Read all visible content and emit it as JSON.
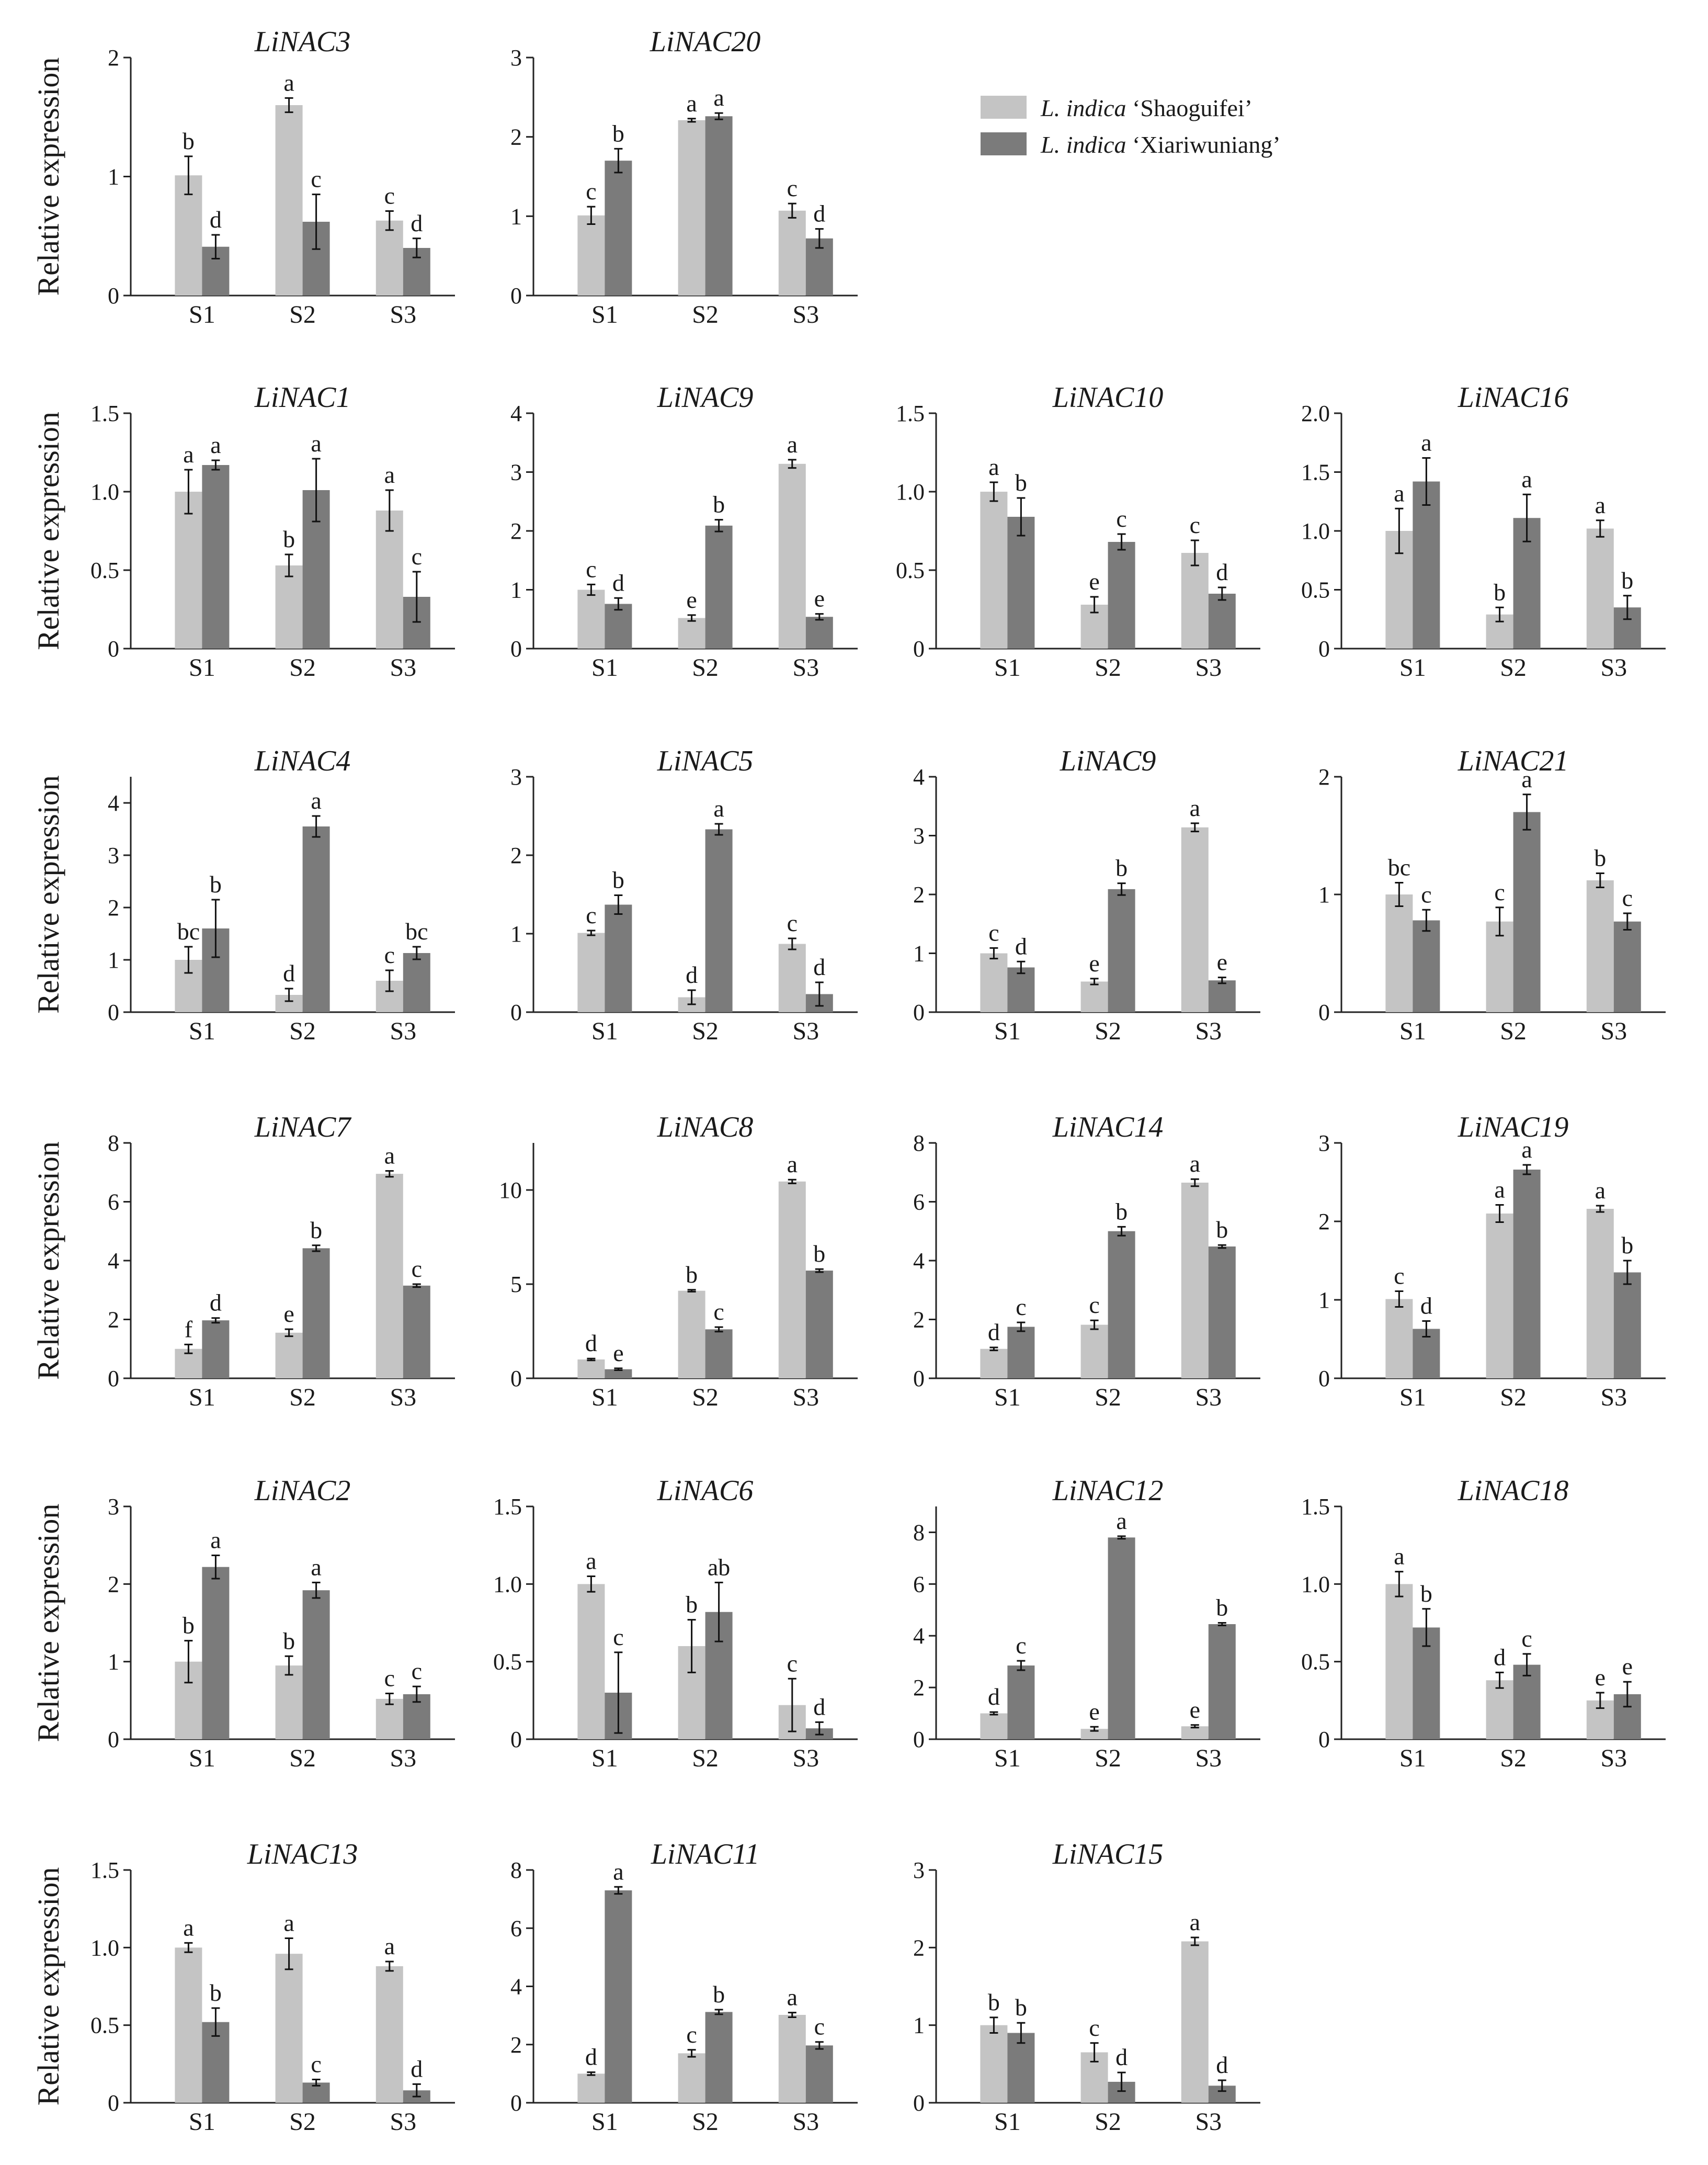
{
  "figure": {
    "ylabel": "Relative expression",
    "legend": [
      {
        "prefix": "L. indica",
        "suffix": " ‘Shaoguifei’",
        "color": "#c4c4c4"
      },
      {
        "prefix": "L. indica",
        "suffix": " ‘Xiariwuniang’",
        "color": "#7b7b7b"
      }
    ]
  },
  "chart_data": [
    {
      "type": "bar",
      "title": "LiNAC3",
      "categories": [
        "S1",
        "S2",
        "S3"
      ],
      "ylim": [
        0,
        2
      ],
      "yticks": [
        0,
        1,
        2
      ],
      "series": [
        {
          "name": "L. indica ‘Shaoguifei’",
          "values": [
            1.01,
            1.6,
            0.63
          ],
          "errors": [
            0.16,
            0.06,
            0.08
          ],
          "letters": [
            "b",
            "a",
            "c"
          ]
        },
        {
          "name": "L. indica ‘Xiariwuniang’",
          "values": [
            0.41,
            0.62,
            0.4
          ],
          "errors": [
            0.1,
            0.23,
            0.08
          ],
          "letters": [
            "d",
            "c",
            "d"
          ]
        }
      ]
    },
    {
      "type": "bar",
      "title": "LiNAC20",
      "categories": [
        "S1",
        "S2",
        "S3"
      ],
      "ylim": [
        0,
        3
      ],
      "yticks": [
        0,
        1,
        2,
        3
      ],
      "series": [
        {
          "name": "L. indica ‘Shaoguifei’",
          "values": [
            1.01,
            2.21,
            1.07
          ],
          "errors": [
            0.11,
            0.02,
            0.09
          ],
          "letters": [
            "c",
            "a",
            "c"
          ]
        },
        {
          "name": "L. indica ‘Xiariwuniang’",
          "values": [
            1.7,
            2.26,
            0.72
          ],
          "errors": [
            0.15,
            0.04,
            0.12
          ],
          "letters": [
            "b",
            "a",
            "d"
          ]
        }
      ]
    },
    {
      "type": "bar",
      "title": "LiNAC1",
      "categories": [
        "S1",
        "S2",
        "S3"
      ],
      "ylim": [
        0,
        1.5
      ],
      "yticks": [
        0,
        0.5,
        1.0,
        1.5
      ],
      "series": [
        {
          "name": "L. indica ‘Shaoguifei’",
          "values": [
            1.0,
            0.53,
            0.88
          ],
          "errors": [
            0.14,
            0.07,
            0.13
          ],
          "letters": [
            "a",
            "b",
            "a"
          ]
        },
        {
          "name": "L. indica ‘Xiariwuniang’",
          "values": [
            1.17,
            1.01,
            0.33
          ],
          "errors": [
            0.03,
            0.2,
            0.16
          ],
          "letters": [
            "a",
            "a",
            "c"
          ]
        }
      ]
    },
    {
      "type": "bar",
      "title": "LiNAC9",
      "categories": [
        "S1",
        "S2",
        "S3"
      ],
      "ylim": [
        0,
        4
      ],
      "yticks": [
        0,
        1,
        2,
        3,
        4
      ],
      "series": [
        {
          "name": "L. indica ‘Shaoguifei’",
          "values": [
            1.0,
            0.52,
            3.14
          ],
          "errors": [
            0.09,
            0.05,
            0.07
          ],
          "letters": [
            "c",
            "e",
            "a"
          ]
        },
        {
          "name": "L. indica ‘Xiariwuniang’",
          "values": [
            0.76,
            2.09,
            0.54
          ],
          "errors": [
            0.1,
            0.1,
            0.05
          ],
          "letters": [
            "d",
            "b",
            "e"
          ]
        }
      ]
    },
    {
      "type": "bar",
      "title": "LiNAC10",
      "categories": [
        "S1",
        "S2",
        "S3"
      ],
      "ylim": [
        0,
        1.5
      ],
      "yticks": [
        0,
        0.5,
        1.0,
        1.5
      ],
      "series": [
        {
          "name": "L. indica ‘Shaoguifei’",
          "values": [
            1.0,
            0.28,
            0.61
          ],
          "errors": [
            0.06,
            0.05,
            0.08
          ],
          "letters": [
            "a",
            "e",
            "c"
          ]
        },
        {
          "name": "L. indica ‘Xiariwuniang’",
          "values": [
            0.84,
            0.68,
            0.35
          ],
          "errors": [
            0.12,
            0.05,
            0.04
          ],
          "letters": [
            "b",
            "c",
            "d"
          ]
        }
      ]
    },
    {
      "type": "bar",
      "title": "LiNAC16",
      "categories": [
        "S1",
        "S2",
        "S3"
      ],
      "ylim": [
        0,
        2.0
      ],
      "yticks": [
        0,
        0.5,
        1.0,
        1.5,
        2.0
      ],
      "series": [
        {
          "name": "L. indica ‘Shaoguifei’",
          "values": [
            1.0,
            0.29,
            1.02
          ],
          "errors": [
            0.19,
            0.06,
            0.07
          ],
          "letters": [
            "a",
            "b",
            "a"
          ]
        },
        {
          "name": "L. indica ‘Xiariwuniang’",
          "values": [
            1.42,
            1.11,
            0.35
          ],
          "errors": [
            0.2,
            0.2,
            0.1
          ],
          "letters": [
            "a",
            "a",
            "b"
          ]
        }
      ]
    },
    {
      "type": "bar",
      "title": "LiNAC4",
      "categories": [
        "S1",
        "S2",
        "S3"
      ],
      "ylim": [
        0,
        4.5
      ],
      "yticks": [
        0,
        1,
        2,
        3,
        4
      ],
      "series": [
        {
          "name": "L. indica ‘Shaoguifei’",
          "values": [
            1.0,
            0.33,
            0.6
          ],
          "errors": [
            0.25,
            0.12,
            0.2
          ],
          "letters": [
            "bc",
            "d",
            "c"
          ]
        },
        {
          "name": "L. indica ‘Xiariwuniang’",
          "values": [
            1.6,
            3.55,
            1.13
          ],
          "errors": [
            0.55,
            0.2,
            0.12
          ],
          "letters": [
            "b",
            "a",
            "bc"
          ]
        }
      ]
    },
    {
      "type": "bar",
      "title": "LiNAC5",
      "categories": [
        "S1",
        "S2",
        "S3"
      ],
      "ylim": [
        0,
        3
      ],
      "yticks": [
        0,
        1,
        2,
        3
      ],
      "series": [
        {
          "name": "L. indica ‘Shaoguifei’",
          "values": [
            1.01,
            0.19,
            0.87
          ],
          "errors": [
            0.03,
            0.09,
            0.07
          ],
          "letters": [
            "c",
            "d",
            "c"
          ]
        },
        {
          "name": "L. indica ‘Xiariwuniang’",
          "values": [
            1.37,
            2.33,
            0.23
          ],
          "errors": [
            0.12,
            0.07,
            0.15
          ],
          "letters": [
            "b",
            "a",
            "d"
          ]
        }
      ]
    },
    {
      "type": "bar",
      "title": "LiNAC9",
      "categories": [
        "S1",
        "S2",
        "S3"
      ],
      "ylim": [
        0,
        4
      ],
      "yticks": [
        0,
        1,
        2,
        3,
        4
      ],
      "series": [
        {
          "name": "L. indica ‘Shaoguifei’",
          "values": [
            1.0,
            0.52,
            3.14
          ],
          "errors": [
            0.09,
            0.05,
            0.07
          ],
          "letters": [
            "c",
            "e",
            "a"
          ]
        },
        {
          "name": "L. indica ‘Xiariwuniang’",
          "values": [
            0.76,
            2.09,
            0.54
          ],
          "errors": [
            0.1,
            0.1,
            0.05
          ],
          "letters": [
            "d",
            "b",
            "e"
          ]
        }
      ]
    },
    {
      "type": "bar",
      "title": "LiNAC21",
      "categories": [
        "S1",
        "S2",
        "S3"
      ],
      "ylim": [
        0,
        2
      ],
      "yticks": [
        0,
        1,
        2
      ],
      "series": [
        {
          "name": "L. indica ‘Shaoguifei’",
          "values": [
            1.0,
            0.77,
            1.12
          ],
          "errors": [
            0.1,
            0.12,
            0.06
          ],
          "letters": [
            "bc",
            "c",
            "b"
          ]
        },
        {
          "name": "L. indica ‘Xiariwuniang’",
          "values": [
            0.78,
            1.7,
            0.77
          ],
          "errors": [
            0.09,
            0.15,
            0.07
          ],
          "letters": [
            "c",
            "a",
            "c"
          ]
        }
      ]
    },
    {
      "type": "bar",
      "title": "LiNAC7",
      "categories": [
        "S1",
        "S2",
        "S3"
      ],
      "ylim": [
        0,
        8
      ],
      "yticks": [
        0,
        2,
        4,
        6,
        8
      ],
      "series": [
        {
          "name": "L. indica ‘Shaoguifei’",
          "values": [
            1.0,
            1.55,
            6.95
          ],
          "errors": [
            0.15,
            0.12,
            0.1
          ],
          "letters": [
            "f",
            "e",
            "a"
          ]
        },
        {
          "name": "L. indica ‘Xiariwuniang’",
          "values": [
            1.97,
            4.42,
            3.15
          ],
          "errors": [
            0.08,
            0.1,
            0.05
          ],
          "letters": [
            "d",
            "b",
            "c"
          ]
        }
      ]
    },
    {
      "type": "bar",
      "title": "LiNAC8",
      "categories": [
        "S1",
        "S2",
        "S3"
      ],
      "ylim": [
        0,
        12.5
      ],
      "yticks": [
        0,
        5,
        10
      ],
      "series": [
        {
          "name": "L. indica ‘Shaoguifei’",
          "values": [
            1.0,
            4.65,
            10.45
          ],
          "errors": [
            0.05,
            0.05,
            0.1
          ],
          "letters": [
            "d",
            "b",
            "a"
          ]
        },
        {
          "name": "L. indica ‘Xiariwuniang’",
          "values": [
            0.48,
            2.6,
            5.72
          ],
          "errors": [
            0.05,
            0.12,
            0.08
          ],
          "letters": [
            "e",
            "c",
            "b"
          ]
        }
      ]
    },
    {
      "type": "bar",
      "title": "LiNAC14",
      "categories": [
        "S1",
        "S2",
        "S3"
      ],
      "ylim": [
        0,
        8
      ],
      "yticks": [
        0,
        2,
        4,
        6,
        8
      ],
      "series": [
        {
          "name": "L. indica ‘Shaoguifei’",
          "values": [
            1.0,
            1.82,
            6.65
          ],
          "errors": [
            0.05,
            0.15,
            0.12
          ],
          "letters": [
            "d",
            "c",
            "a"
          ]
        },
        {
          "name": "L. indica ‘Xiariwuniang’",
          "values": [
            1.75,
            5.0,
            4.48
          ],
          "errors": [
            0.15,
            0.15,
            0.05
          ],
          "letters": [
            "c",
            "b",
            "b"
          ]
        }
      ]
    },
    {
      "type": "bar",
      "title": "LiNAC19",
      "categories": [
        "S1",
        "S2",
        "S3"
      ],
      "ylim": [
        0,
        3
      ],
      "yticks": [
        0,
        1,
        2,
        3
      ],
      "series": [
        {
          "name": "L. indica ‘Shaoguifei’",
          "values": [
            1.01,
            2.1,
            2.16
          ],
          "errors": [
            0.1,
            0.11,
            0.04
          ],
          "letters": [
            "c",
            "a",
            "a"
          ]
        },
        {
          "name": "L. indica ‘Xiariwuniang’",
          "values": [
            0.63,
            2.66,
            1.35
          ],
          "errors": [
            0.1,
            0.06,
            0.15
          ],
          "letters": [
            "d",
            "a",
            "b"
          ]
        }
      ]
    },
    {
      "type": "bar",
      "title": "LiNAC2",
      "categories": [
        "S1",
        "S2",
        "S3"
      ],
      "ylim": [
        0,
        3
      ],
      "yticks": [
        0,
        1,
        2,
        3
      ],
      "series": [
        {
          "name": "L. indica ‘Shaoguifei’",
          "values": [
            1.0,
            0.95,
            0.52
          ],
          "errors": [
            0.27,
            0.12,
            0.07
          ],
          "letters": [
            "b",
            "b",
            "c"
          ]
        },
        {
          "name": "L. indica ‘Xiariwuniang’",
          "values": [
            2.22,
            1.92,
            0.58
          ],
          "errors": [
            0.15,
            0.1,
            0.1
          ],
          "letters": [
            "a",
            "a",
            "c"
          ]
        }
      ]
    },
    {
      "type": "bar",
      "title": "LiNAC6",
      "categories": [
        "S1",
        "S2",
        "S3"
      ],
      "ylim": [
        0,
        1.5
      ],
      "yticks": [
        0,
        0.5,
        1.0,
        1.5
      ],
      "series": [
        {
          "name": "L. indica ‘Shaoguifei’",
          "values": [
            1.0,
            0.6,
            0.22
          ],
          "errors": [
            0.05,
            0.17,
            0.17
          ],
          "letters": [
            "a",
            "b",
            "c"
          ]
        },
        {
          "name": "L. indica ‘Xiariwuniang’",
          "values": [
            0.3,
            0.82,
            0.07
          ],
          "errors": [
            0.26,
            0.19,
            0.04
          ],
          "letters": [
            "c",
            "ab",
            "d"
          ]
        }
      ]
    },
    {
      "type": "bar",
      "title": "LiNAC12",
      "categories": [
        "S1",
        "S2",
        "S3"
      ],
      "ylim": [
        0,
        9
      ],
      "yticks": [
        0,
        2,
        4,
        6,
        8
      ],
      "series": [
        {
          "name": "L. indica ‘Shaoguifei’",
          "values": [
            1.0,
            0.4,
            0.5
          ],
          "errors": [
            0.05,
            0.08,
            0.05
          ],
          "letters": [
            "d",
            "e",
            "e"
          ]
        },
        {
          "name": "L. indica ‘Xiariwuniang’",
          "values": [
            2.85,
            7.8,
            4.45
          ],
          "errors": [
            0.18,
            0.05,
            0.05
          ],
          "letters": [
            "c",
            "a",
            "b"
          ]
        }
      ]
    },
    {
      "type": "bar",
      "title": "LiNAC18",
      "categories": [
        "S1",
        "S2",
        "S3"
      ],
      "ylim": [
        0,
        1.5
      ],
      "yticks": [
        0,
        0.5,
        1.0,
        1.5
      ],
      "series": [
        {
          "name": "L. indica ‘Shaoguifei’",
          "values": [
            1.0,
            0.38,
            0.25
          ],
          "errors": [
            0.08,
            0.05,
            0.05
          ],
          "letters": [
            "a",
            "d",
            "e"
          ]
        },
        {
          "name": "L. indica ‘Xiariwuniang’",
          "values": [
            0.72,
            0.48,
            0.29
          ],
          "errors": [
            0.12,
            0.07,
            0.08
          ],
          "letters": [
            "b",
            "c",
            "e"
          ]
        }
      ]
    },
    {
      "type": "bar",
      "title": "LiNAC13",
      "categories": [
        "S1",
        "S2",
        "S3"
      ],
      "ylim": [
        0,
        1.5
      ],
      "yticks": [
        0,
        0.5,
        1.0,
        1.5
      ],
      "series": [
        {
          "name": "L. indica ‘Shaoguifei’",
          "values": [
            1.0,
            0.96,
            0.88
          ],
          "errors": [
            0.03,
            0.1,
            0.03
          ],
          "letters": [
            "a",
            "a",
            "a"
          ]
        },
        {
          "name": "L. indica ‘Xiariwuniang’",
          "values": [
            0.52,
            0.13,
            0.08
          ],
          "errors": [
            0.09,
            0.02,
            0.04
          ],
          "letters": [
            "b",
            "c",
            "d"
          ]
        }
      ]
    },
    {
      "type": "bar",
      "title": "LiNAC11",
      "categories": [
        "S1",
        "S2",
        "S3"
      ],
      "ylim": [
        0,
        8
      ],
      "yticks": [
        0,
        2,
        4,
        6,
        8
      ],
      "series": [
        {
          "name": "L. indica ‘Shaoguifei’",
          "values": [
            1.0,
            1.7,
            3.02
          ],
          "errors": [
            0.05,
            0.12,
            0.08
          ],
          "letters": [
            "d",
            "c",
            "a"
          ]
        },
        {
          "name": "L. indica ‘Xiariwuniang’",
          "values": [
            7.3,
            3.12,
            1.97
          ],
          "errors": [
            0.12,
            0.08,
            0.12
          ],
          "letters": [
            "a",
            "b",
            "c"
          ]
        }
      ]
    },
    {
      "type": "bar",
      "title": "LiNAC15",
      "categories": [
        "S1",
        "S2",
        "S3"
      ],
      "ylim": [
        0,
        3
      ],
      "yticks": [
        0,
        1,
        2,
        3
      ],
      "series": [
        {
          "name": "L. indica ‘Shaoguifei’",
          "values": [
            1.0,
            0.65,
            2.08
          ],
          "errors": [
            0.1,
            0.12,
            0.05
          ],
          "letters": [
            "b",
            "c",
            "a"
          ]
        },
        {
          "name": "L. indica ‘Xiariwuniang’",
          "values": [
            0.9,
            0.27,
            0.22
          ],
          "errors": [
            0.13,
            0.12,
            0.07
          ],
          "letters": [
            "b",
            "d",
            "d"
          ]
        }
      ]
    }
  ]
}
